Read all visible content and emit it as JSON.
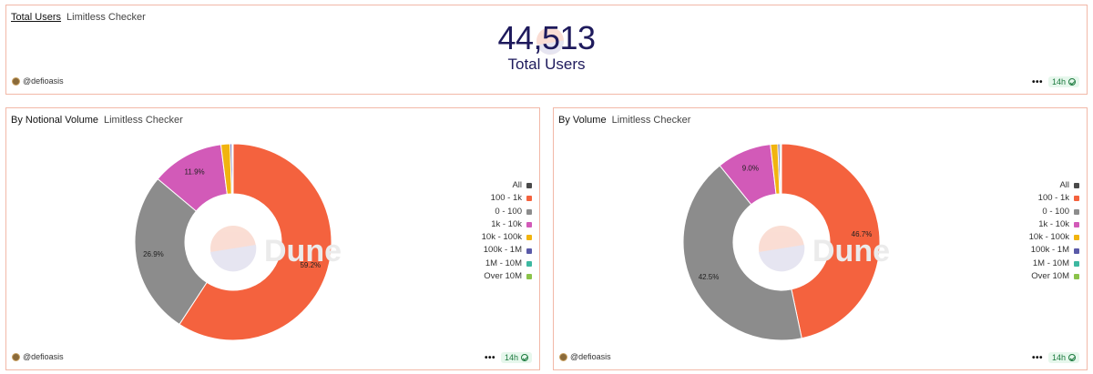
{
  "counter": {
    "title": "Total Users",
    "subtitle": "Limitless Checker",
    "value": "44,513",
    "label": "Total Users",
    "author": "@defioasis",
    "age": "14h"
  },
  "watermark": "Dune",
  "chart_data": [
    {
      "type": "pie",
      "title": "By Notional Volume",
      "subtitle": "Limitless Checker",
      "author": "@defioasis",
      "age": "14h",
      "legend_position": "right",
      "legend": [
        "All",
        "100 - 1k",
        "0 - 100",
        "1k - 10k",
        "10k - 100k",
        "100k - 1M",
        "1M - 10M",
        "Over 10M"
      ],
      "slices": [
        {
          "name": "100 - 1k",
          "value": 59.2,
          "label": "59.2%"
        },
        {
          "name": "0 - 100",
          "value": 26.9,
          "label": "26.9%"
        },
        {
          "name": "1k - 10k",
          "value": 11.9,
          "label": "11.9%"
        },
        {
          "name": "10k - 100k",
          "value": 1.5
        },
        {
          "name": "100k - 1M",
          "value": 0.3
        },
        {
          "name": "1M - 10M",
          "value": 0.1
        },
        {
          "name": "Over 10M",
          "value": 0.1
        }
      ]
    },
    {
      "type": "pie",
      "title": "By Volume",
      "subtitle": "Limitless Checker",
      "author": "@defioasis",
      "age": "14h",
      "legend_position": "right",
      "legend": [
        "All",
        "100 - 1k",
        "0 - 100",
        "1k - 10k",
        "10k - 100k",
        "100k - 1M",
        "1M - 10M",
        "Over 10M"
      ],
      "slices": [
        {
          "name": "100 - 1k",
          "value": 46.7,
          "label": "46.7%"
        },
        {
          "name": "0 - 100",
          "value": 42.5,
          "label": "42.5%"
        },
        {
          "name": "1k - 10k",
          "value": 9.0,
          "label": "9.0%"
        },
        {
          "name": "10k - 100k",
          "value": 1.2
        },
        {
          "name": "100k - 1M",
          "value": 0.3
        },
        {
          "name": "1M - 10M",
          "value": 0.2
        },
        {
          "name": "Over 10M",
          "value": 0.1
        }
      ]
    }
  ],
  "colors": {
    "All": "#4a4a4a",
    "100 - 1k": "#f4623e",
    "0 - 100": "#8c8c8c",
    "1k - 10k": "#d25ab8",
    "10k - 100k": "#f1b40f",
    "100k - 1M": "#5a5aa8",
    "1M - 10M": "#3db8a0",
    "Over 10M": "#8bc34a"
  }
}
